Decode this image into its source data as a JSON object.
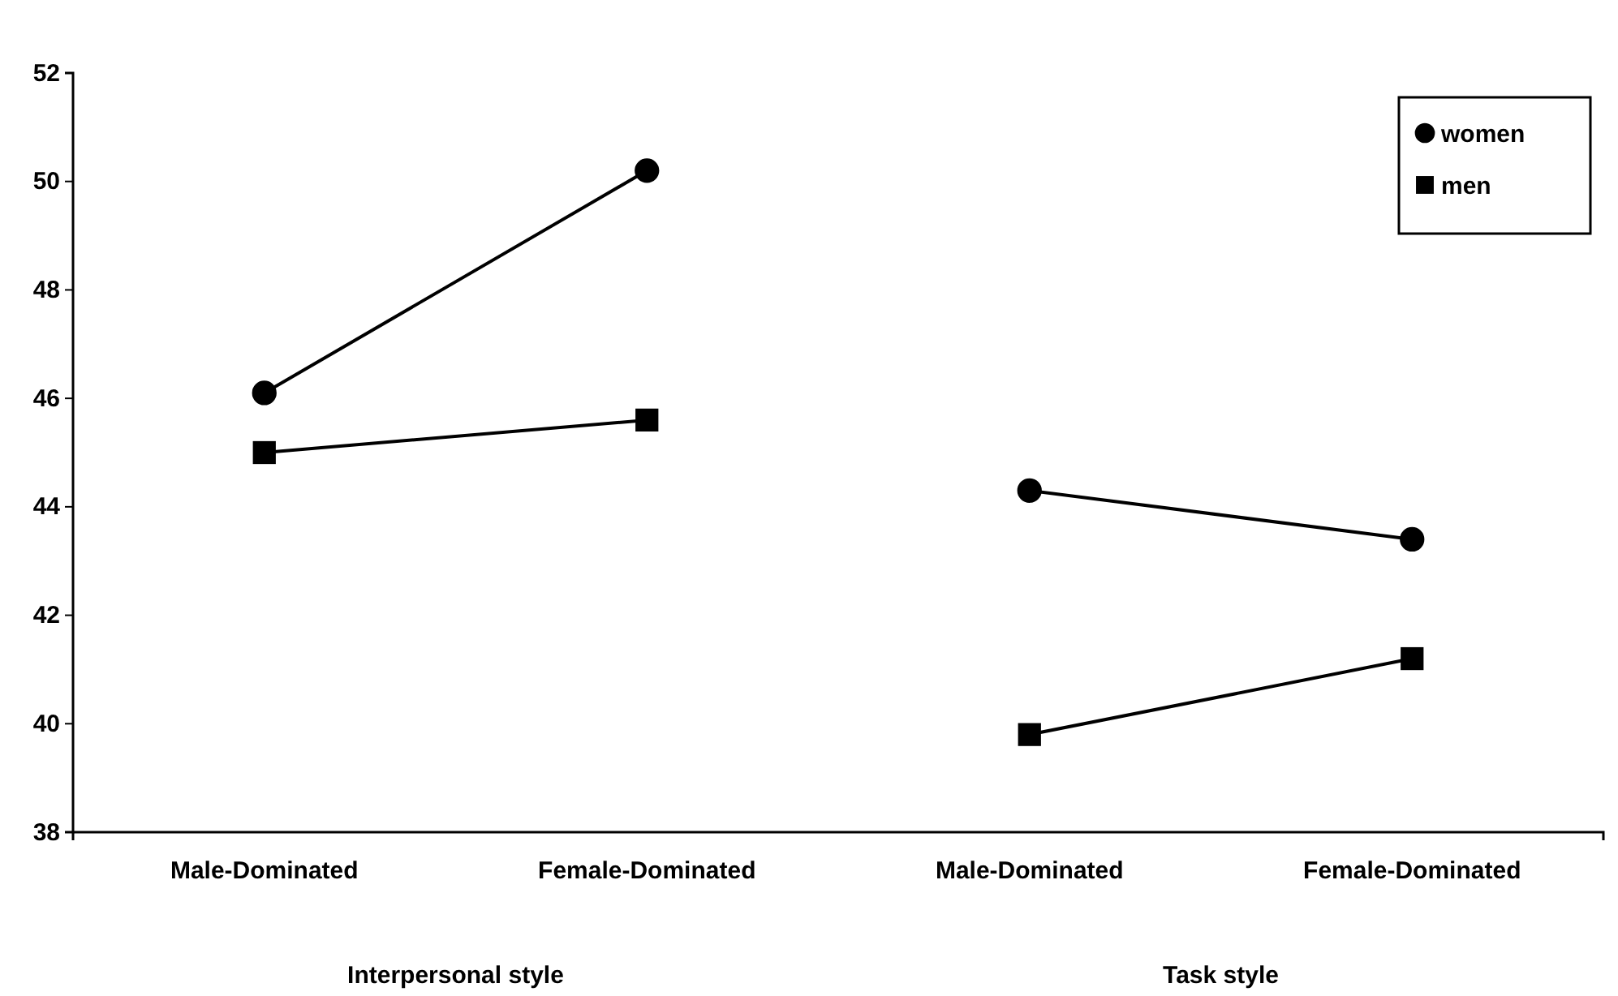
{
  "chart_data": {
    "type": "line",
    "categories": [
      "Male-Dominated",
      "Female-Dominated",
      "Male-Dominated",
      "Female-Dominated"
    ],
    "series": [
      {
        "name": "women",
        "color": "#000000",
        "marker": "circle",
        "values": [
          46.1,
          50.2,
          null,
          null
        ]
      },
      {
        "name": "men",
        "color": "#000000",
        "marker": "square",
        "values": [
          45.0,
          45.6,
          null,
          null
        ]
      },
      {
        "color": "#000000",
        "marker": "circle",
        "values": [
          null,
          null,
          44.3,
          43.4
        ]
      },
      {
        "color": "#000000",
        "marker": "square",
        "values": [
          null,
          null,
          39.8,
          41.2
        ]
      }
    ],
    "ylim": [
      38,
      52
    ],
    "yticks": [
      38,
      40,
      42,
      44,
      46,
      48,
      50,
      52
    ],
    "grid": false,
    "legend": "top right",
    "line_style": "solid",
    "annotations": [
      "Interpersonal style",
      "Task style"
    ]
  }
}
